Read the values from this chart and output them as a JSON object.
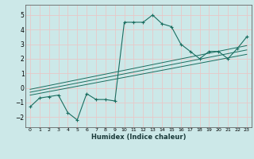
{
  "title": "",
  "xlabel": "Humidex (Indice chaleur)",
  "bg_color": "#cce8e8",
  "grid_color": "#e8c8c8",
  "line_color": "#1a6e60",
  "xlim": [
    -0.5,
    23.5
  ],
  "ylim": [
    -2.7,
    5.7
  ],
  "xticks": [
    0,
    1,
    2,
    3,
    4,
    5,
    6,
    7,
    8,
    9,
    10,
    11,
    12,
    13,
    14,
    15,
    16,
    17,
    18,
    19,
    20,
    21,
    22,
    23
  ],
  "yticks": [
    -2,
    -1,
    0,
    1,
    2,
    3,
    4,
    5
  ],
  "main_x": [
    0,
    1,
    2,
    3,
    4,
    5,
    6,
    7,
    8,
    9,
    10,
    11,
    12,
    13,
    14,
    15,
    16,
    17,
    18,
    19,
    20,
    21,
    22,
    23
  ],
  "main_y": [
    -1.3,
    -0.7,
    -0.6,
    -0.5,
    -1.7,
    -2.2,
    -0.4,
    -0.8,
    -0.8,
    -0.9,
    4.5,
    4.5,
    4.5,
    5.0,
    4.4,
    4.2,
    3.0,
    2.5,
    2.0,
    2.5,
    2.5,
    2.0,
    2.7,
    3.5
  ],
  "reg_lines": [
    {
      "x": [
        0,
        23
      ],
      "y": [
        -0.5,
        2.3
      ]
    },
    {
      "x": [
        0,
        23
      ],
      "y": [
        -0.3,
        2.6
      ]
    },
    {
      "x": [
        0,
        23
      ],
      "y": [
        -0.1,
        2.9
      ]
    }
  ]
}
